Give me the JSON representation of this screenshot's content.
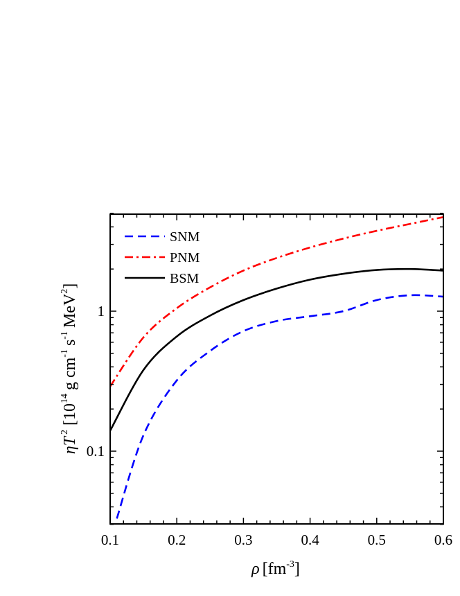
{
  "chart_data": {
    "type": "line",
    "title": "",
    "xlabel": "ρ [fm^-3]",
    "ylabel": "ηT² [10^14 g cm^-1 s^-1 MeV²]",
    "xlim": [
      0.1,
      0.6
    ],
    "ylim": [
      0.03,
      5
    ],
    "yscale": "log",
    "grid": false,
    "legend_position": "upper left",
    "x_ticks": [
      "0.1",
      "0.2",
      "0.3",
      "0.4",
      "0.5",
      "0.6"
    ],
    "y_ticks": [
      "0.1",
      "1"
    ],
    "x": [
      0.1,
      0.15,
      0.2,
      0.25,
      0.3,
      0.35,
      0.4,
      0.45,
      0.5,
      0.55,
      0.6
    ],
    "series": [
      {
        "name": "SNM",
        "color": "#0000ff",
        "style": "dashed",
        "x": [
          0.11,
          0.15,
          0.2,
          0.25,
          0.3,
          0.35,
          0.4,
          0.45,
          0.5,
          0.55,
          0.6
        ],
        "values": [
          0.033,
          0.13,
          0.32,
          0.52,
          0.72,
          0.85,
          0.92,
          1.0,
          1.2,
          1.3,
          1.27
        ]
      },
      {
        "name": "PNM",
        "color": "#ff0000",
        "style": "dash-dot",
        "values": [
          0.29,
          0.65,
          1.05,
          1.48,
          1.95,
          2.4,
          2.85,
          3.3,
          3.75,
          4.2,
          4.7
        ]
      },
      {
        "name": "BSM",
        "color": "#000000",
        "style": "solid",
        "values": [
          0.14,
          0.38,
          0.66,
          0.93,
          1.2,
          1.45,
          1.68,
          1.85,
          1.97,
          2.0,
          1.95
        ]
      }
    ]
  },
  "labels": {
    "x_axis_rho": "ρ",
    "x_axis_unit_open": "[fm",
    "x_axis_exp": "-3",
    "x_axis_unit_close": "]",
    "y_axis_symbol": "ηT",
    "y_axis_exp2": "2",
    "y_axis_bracket_open": "[10",
    "y_axis_exp14": "14",
    "y_axis_g_cm": "g cm",
    "y_axis_exp_m1a": "-1",
    "y_axis_s": "s",
    "y_axis_exp_m1b": "-1",
    "y_axis_mev": "MeV",
    "y_axis_exp_mev": "2",
    "y_axis_bracket_close": "]"
  }
}
